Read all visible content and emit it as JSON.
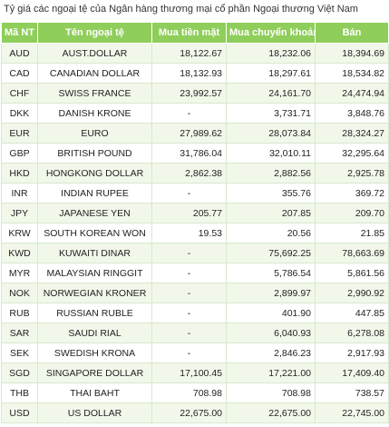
{
  "title": "Tỷ giá các ngoại tệ của Ngân hàng thương mại cổ phần Ngoại thương Việt Nam",
  "headers": [
    "Mã NT",
    "Tên ngoại tệ",
    "Mua tiền mặt",
    "Mua chuyển khoản",
    "Bán"
  ],
  "rows": [
    [
      "AUD",
      "AUST.DOLLAR",
      "18,122.67",
      "18,232.06",
      "18,394.69"
    ],
    [
      "CAD",
      "CANADIAN DOLLAR",
      "18,132.93",
      "18,297.61",
      "18,534.82"
    ],
    [
      "CHF",
      "SWISS FRANCE",
      "23,992.57",
      "24,161.70",
      "24,474.94"
    ],
    [
      "DKK",
      "DANISH KRONE",
      "-",
      "3,731.71",
      "3,848.76"
    ],
    [
      "EUR",
      "EURO",
      "27,989.62",
      "28,073.84",
      "28,324.27"
    ],
    [
      "GBP",
      "BRITISH POUND",
      "31,786.04",
      "32,010.11",
      "32,295.64"
    ],
    [
      "HKD",
      "HONGKONG DOLLAR",
      "2,862.38",
      "2,882.56",
      "2,925.78"
    ],
    [
      "INR",
      "INDIAN RUPEE",
      "-",
      "355.76",
      "369.72"
    ],
    [
      "JPY",
      "JAPANESE YEN",
      "205.77",
      "207.85",
      "209.70"
    ],
    [
      "KRW",
      "SOUTH KOREAN WON",
      "19.53",
      "20.56",
      "21.85"
    ],
    [
      "KWD",
      "KUWAITI DINAR",
      "-",
      "75,692.25",
      "78,663.69"
    ],
    [
      "MYR",
      "MALAYSIAN RINGGIT",
      "-",
      "5,786.54",
      "5,861.56"
    ],
    [
      "NOK",
      "NORWEGIAN KRONER",
      "-",
      "2,899.97",
      "2,990.92"
    ],
    [
      "RUB",
      "RUSSIAN RUBLE",
      "-",
      "401.90",
      "447.85"
    ],
    [
      "SAR",
      "SAUDI RIAL",
      "-",
      "6,040.93",
      "6,278.08"
    ],
    [
      "SEK",
      "SWEDISH KRONA",
      "-",
      "2,846.23",
      "2,917.93"
    ],
    [
      "SGD",
      "SINGAPORE DOLLAR",
      "17,100.45",
      "17,221.00",
      "17,409.40"
    ],
    [
      "THB",
      "THAI BAHT",
      "708.98",
      "708.98",
      "738.57"
    ],
    [
      "USD",
      "US DOLLAR",
      "22,675.00",
      "22,675.00",
      "22,745.00"
    ]
  ]
}
